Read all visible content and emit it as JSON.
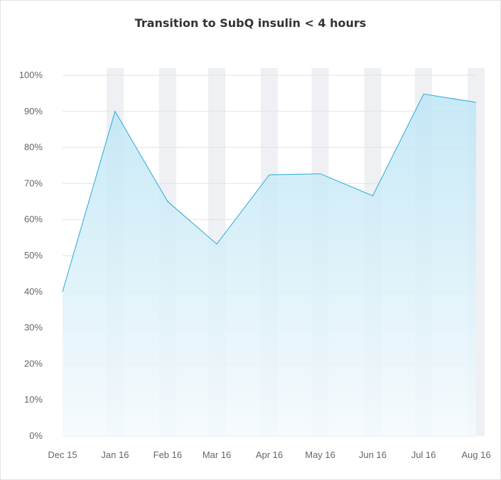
{
  "chart_data": {
    "type": "area",
    "title": "Transition to SubQ insulin < 4 hours",
    "xlabel": "",
    "ylabel": "",
    "x": [
      "2015-12-01",
      "2016-01-01",
      "2016-02-01",
      "2016-03-01",
      "2016-04-01",
      "2016-05-01",
      "2016-06-01",
      "2016-07-01",
      "2016-08-01"
    ],
    "x_tick_labels": [
      "Dec 15",
      "Jan 16",
      "Feb 16",
      "Mar 16",
      "Apr 16",
      "May 16",
      "Jun 16",
      "Jul 16",
      "Aug 16"
    ],
    "series": [
      {
        "values": [
          40,
          90,
          65,
          53.2,
          72.4,
          72.7,
          66.6,
          94.8,
          92.5
        ]
      }
    ],
    "y_tick_labels": [
      "0%",
      "10%",
      "20%",
      "30%",
      "40%",
      "50%",
      "60%",
      "70%",
      "80%",
      "90%",
      "100%"
    ],
    "ylim": [
      0,
      100
    ],
    "grid": true,
    "legend": "none",
    "colors": {
      "line": "#29a9d8",
      "fill_top": "#bde5f5",
      "fill_bottom": "#f4fafd",
      "band": "#eef0f3",
      "grid": "#e2e2e2"
    }
  }
}
